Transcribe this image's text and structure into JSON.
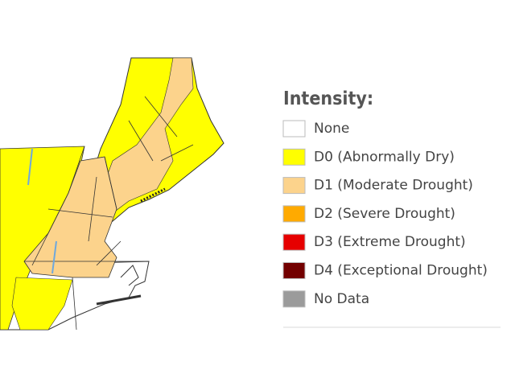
{
  "legend": {
    "title": "Intensity:",
    "items": [
      {
        "label": "None",
        "color": "#ffffff"
      },
      {
        "label": "D0 (Abnormally Dry)",
        "color": "#ffff00"
      },
      {
        "label": "D1 (Moderate Drought)",
        "color": "#fcd38c"
      },
      {
        "label": "D2 (Severe Drought)",
        "color": "#ffaa00"
      },
      {
        "label": "D3 (Extreme Drought)",
        "color": "#e60000"
      },
      {
        "label": "D4 (Exceptional Drought)",
        "color": "#730000"
      },
      {
        "label": "No Data",
        "color": "#9b9b9b"
      }
    ]
  }
}
